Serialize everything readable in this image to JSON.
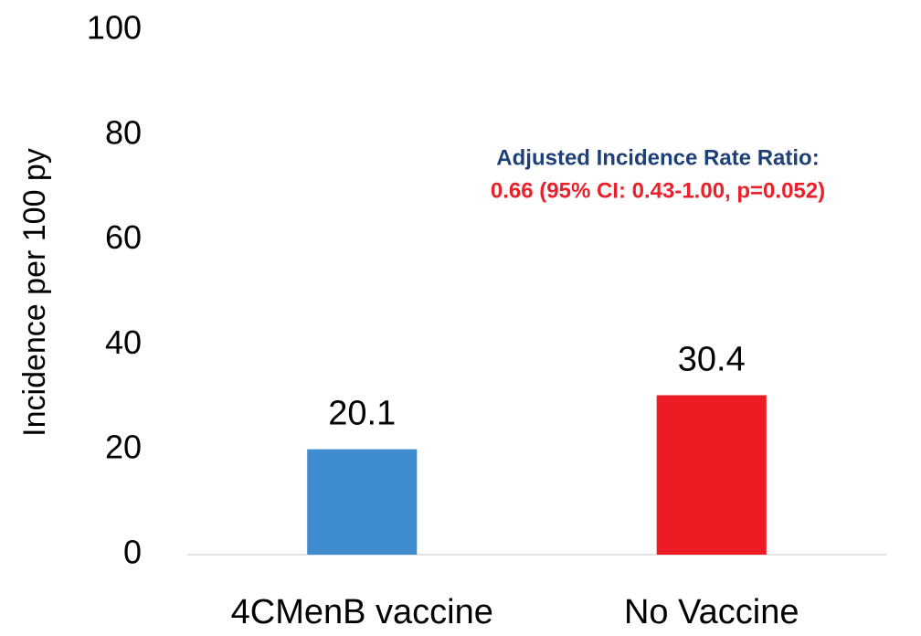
{
  "chart_data": {
    "type": "bar",
    "y_label": "Incidence per 100 py",
    "categories": [
      "4CMenB vaccine",
      "No Vaccine"
    ],
    "values": [
      20.1,
      30.4
    ],
    "colors": [
      "#3f8ccf",
      "#ed1c24"
    ],
    "ylim": [
      0,
      100
    ],
    "yticks": [
      0,
      20,
      40,
      60,
      80,
      100
    ],
    "grid": false,
    "annotations": [
      {
        "text": "Adjusted Incidence Rate Ratio:",
        "color": "#1f3f78"
      },
      {
        "text": "0.66 (95% CI: 0.43-1.00, p=0.052)",
        "color": "#e8212a"
      }
    ]
  }
}
